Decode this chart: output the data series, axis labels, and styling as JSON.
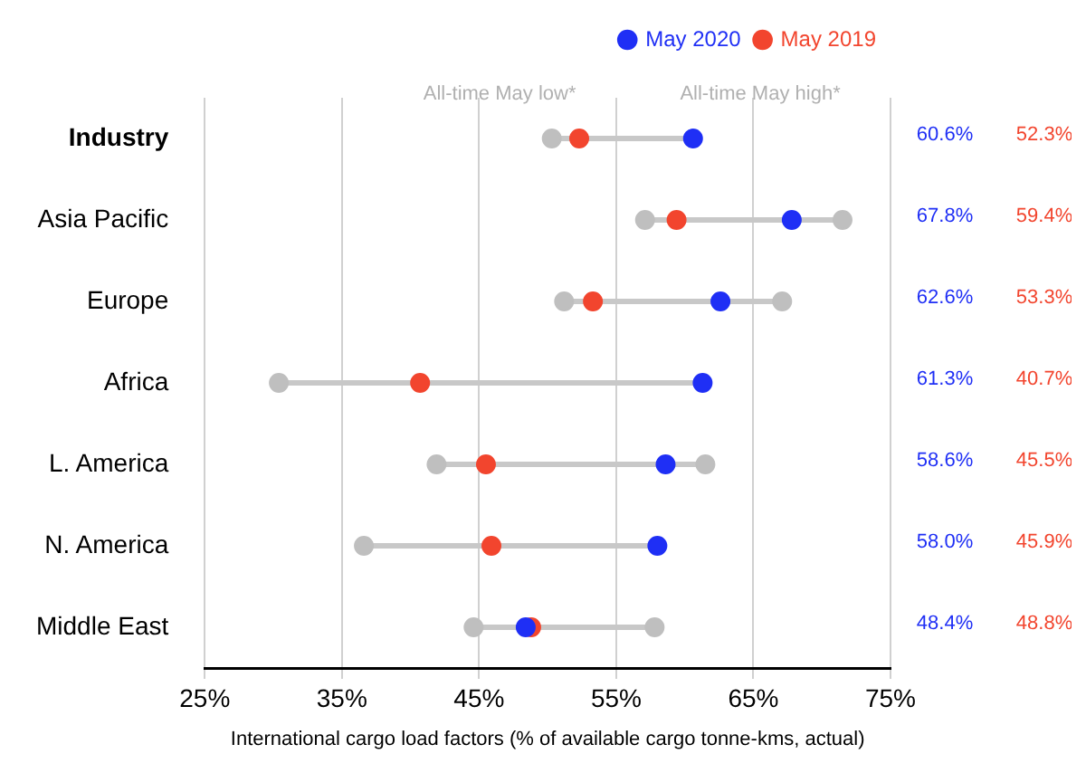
{
  "chart_data": {
    "type": "scatter",
    "orientation": "horizontal",
    "xlabel": "International cargo load factors (% of available cargo tonne-kms, actual)",
    "categories": [
      "Industry",
      "Asia Pacific",
      "Europe",
      "Africa",
      "L. America",
      "N. America",
      "Middle East"
    ],
    "series": [
      {
        "color": "#bfbfbf",
        "values": [
          50.3,
          57.1,
          51.2,
          30.4,
          41.9,
          36.6,
          44.6
        ]
      },
      {
        "color": "#bfbfbf",
        "values": [
          null,
          71.5,
          67.1,
          null,
          61.5,
          null,
          57.8
        ]
      },
      {
        "name": "May 2020",
        "color": "#1f2ff5",
        "values": [
          60.6,
          67.8,
          62.6,
          61.3,
          58.6,
          58.0,
          48.4
        ],
        "value_labels": [
          "60.6%",
          "67.8%",
          "62.6%",
          "61.3%",
          "58.6%",
          "58.0%",
          "48.4%"
        ]
      },
      {
        "name": "May 2019",
        "color": "#f2452e",
        "values": [
          52.3,
          59.4,
          53.3,
          40.7,
          45.5,
          45.9,
          48.8
        ],
        "value_labels": [
          "52.3%",
          "59.4%",
          "53.3%",
          "40.7%",
          "45.5%",
          "45.9%",
          "48.8%"
        ]
      }
    ],
    "xlim": [
      25,
      75
    ],
    "xticks": [
      {
        "value": 25,
        "label": "25%"
      },
      {
        "value": 35,
        "label": "35%"
      },
      {
        "value": 45,
        "label": "45%"
      },
      {
        "value": 55,
        "label": "55%"
      },
      {
        "value": 65,
        "label": "65%"
      },
      {
        "value": 75,
        "label": "75%"
      }
    ],
    "annotations": [
      "All-time May low*",
      "All-time May high*"
    ],
    "grid": "x",
    "legend": "top right",
    "marker": "circle"
  }
}
